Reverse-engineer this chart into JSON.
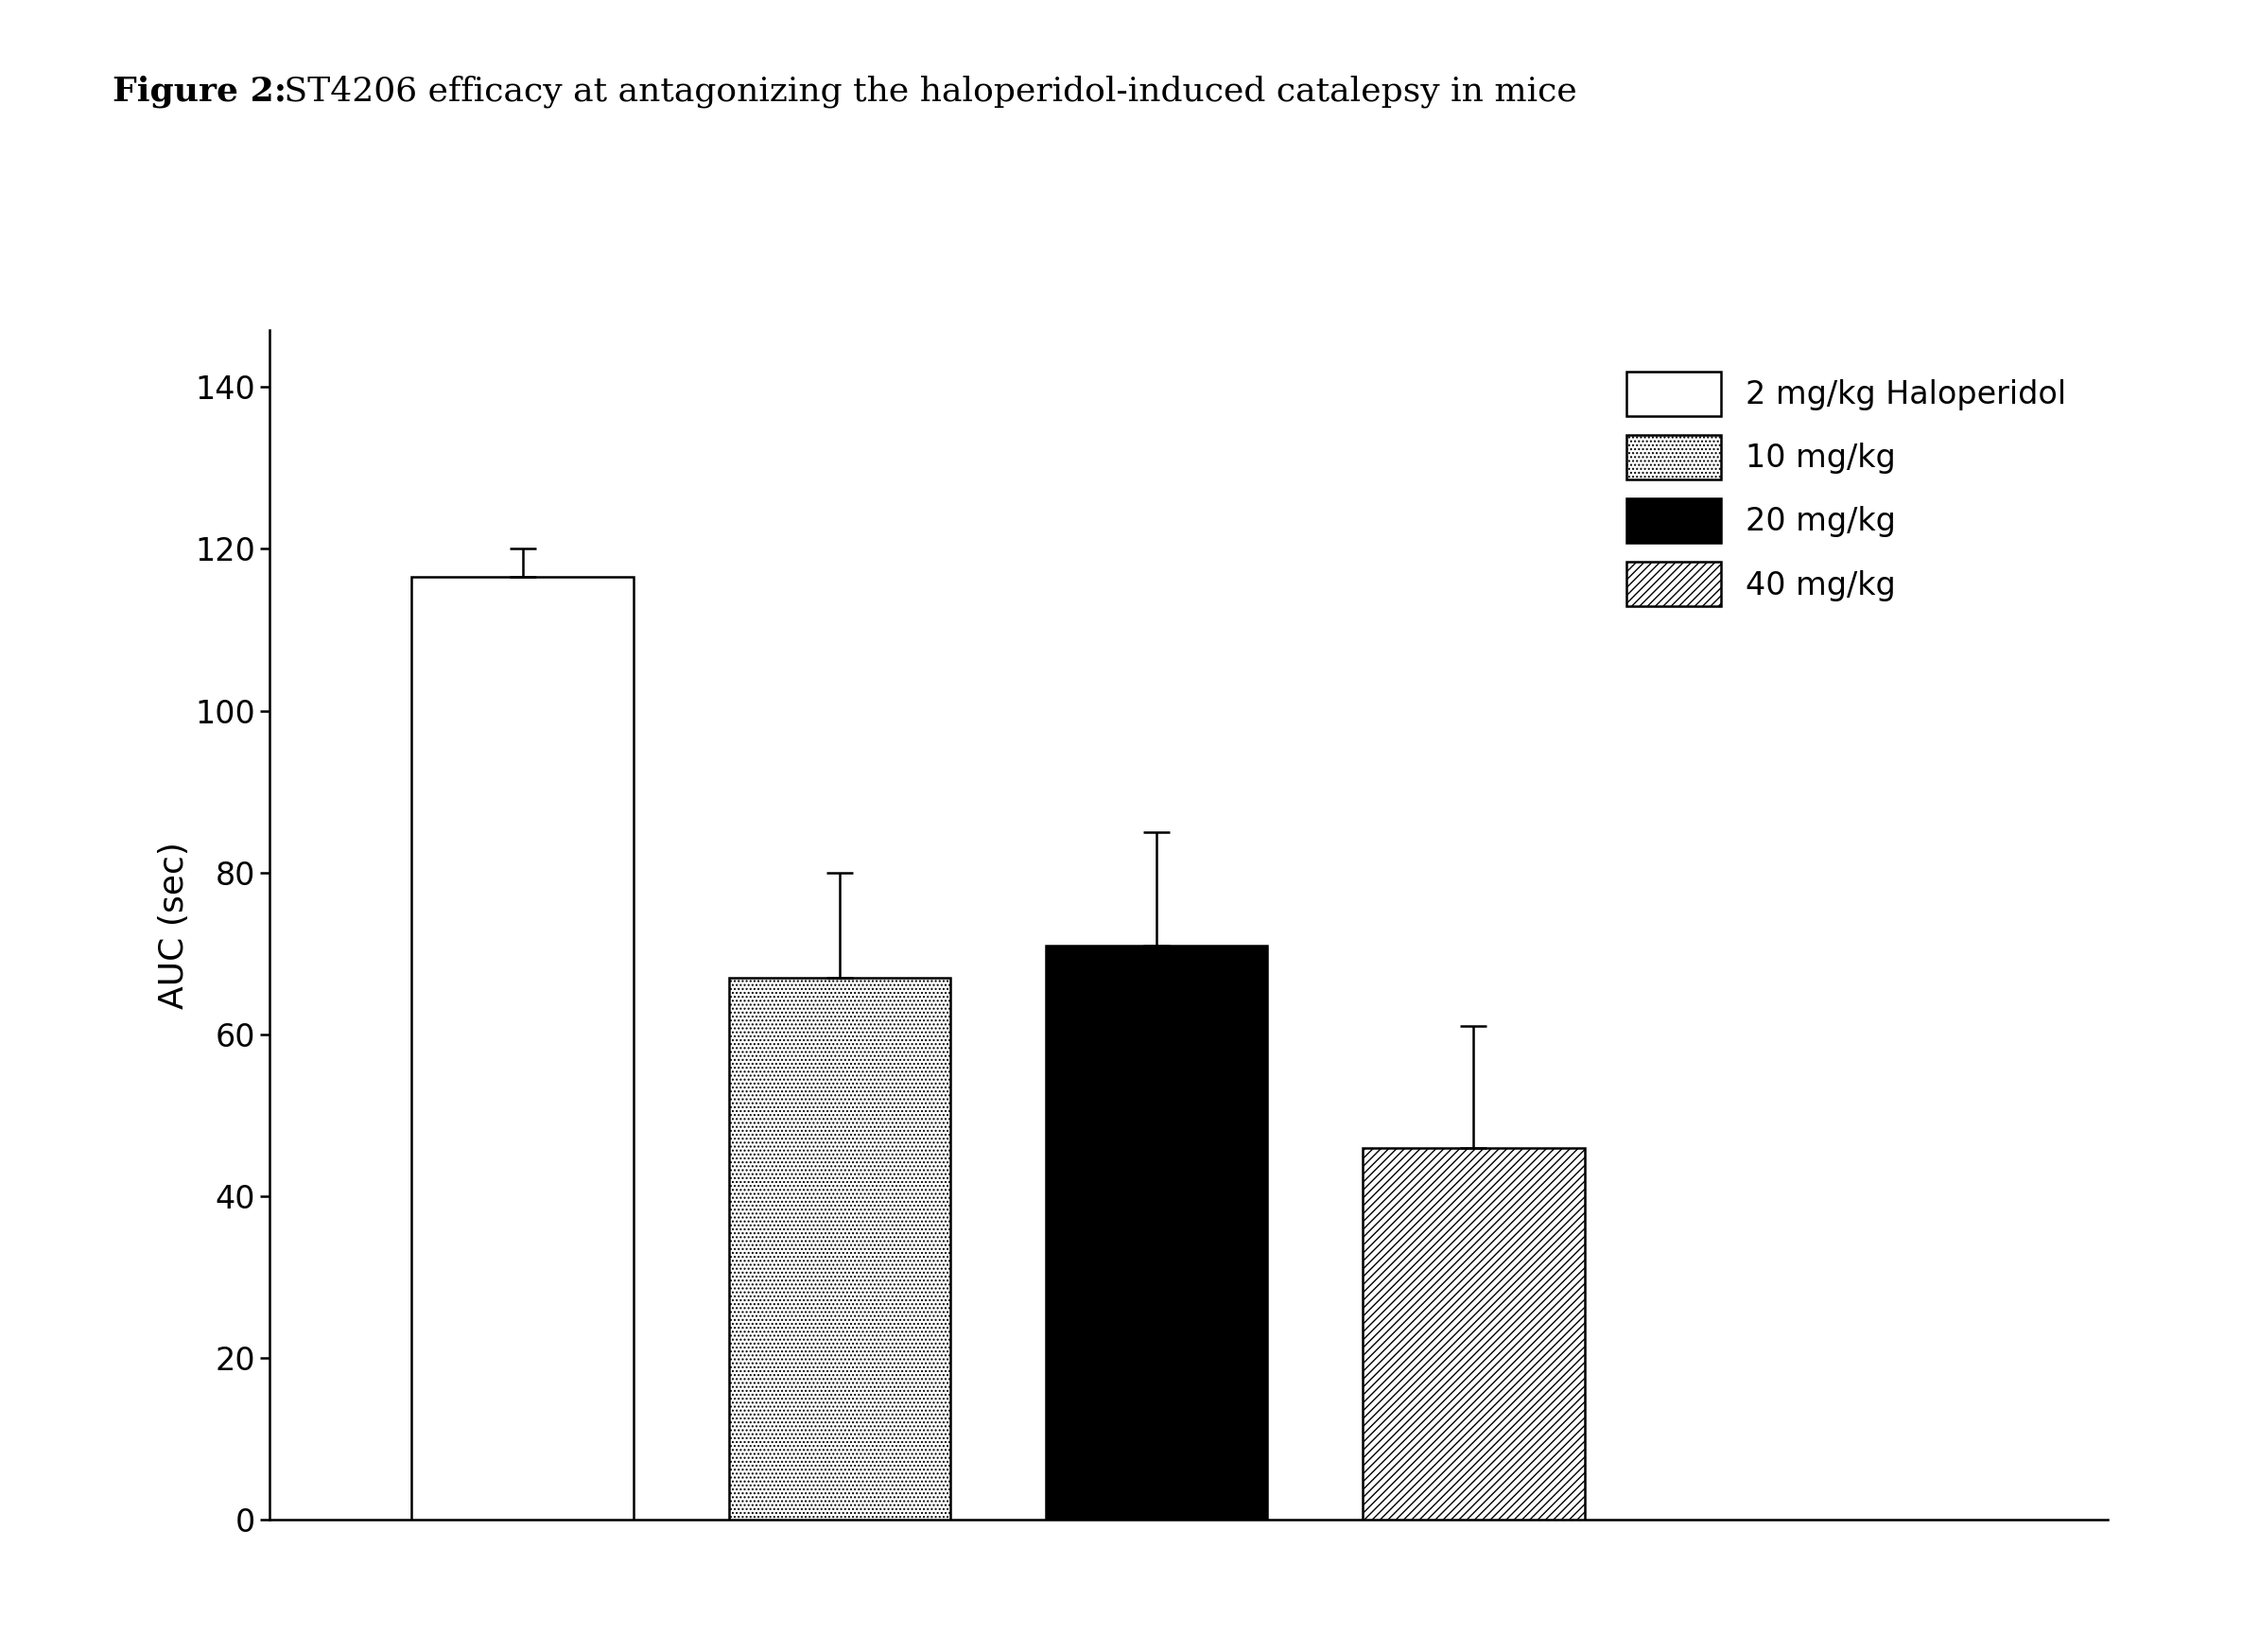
{
  "title_bold": "Figure 2:",
  "title_normal": " ST4206 efficacy at antagonizing the haloperidol-induced catalepsy in mice",
  "ylabel": "AUC (sec)",
  "bar_values": [
    116.5,
    67.0,
    71.0,
    46.0
  ],
  "bar_errors": [
    3.5,
    13.0,
    14.0,
    15.0
  ],
  "bar_positions": [
    2,
    3,
    4,
    5
  ],
  "bar_width": 0.7,
  "ylim": [
    0,
    147
  ],
  "yticks": [
    0,
    20,
    40,
    60,
    80,
    100,
    120,
    140
  ],
  "legend_labels": [
    "2 mg/kg Haloperidol",
    "10 mg/kg",
    "20 mg/kg",
    "40 mg/kg"
  ],
  "bar_colors": [
    "white",
    "white",
    "black",
    "white"
  ],
  "background_color": "#ffffff",
  "bar_edgecolor": "black",
  "title_fontsize": 26,
  "axis_fontsize": 26,
  "tick_fontsize": 24,
  "legend_fontsize": 24,
  "xlim": [
    1.2,
    7.0
  ]
}
